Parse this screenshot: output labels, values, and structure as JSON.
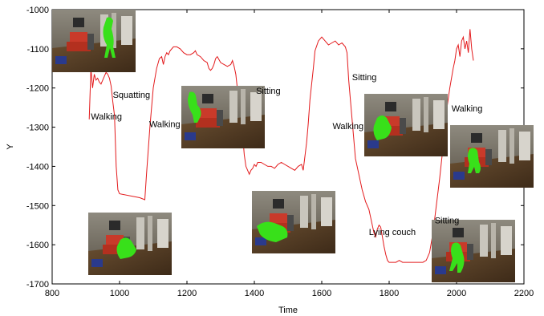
{
  "chart_data": {
    "type": "line",
    "title": "",
    "xlabel": "Time",
    "ylabel": "Y",
    "xlim": [
      800,
      2200
    ],
    "ylim": [
      -1700,
      -1000
    ],
    "xticks": [
      800,
      1000,
      1200,
      1400,
      1600,
      1800,
      2000,
      2200
    ],
    "yticks": [
      -1000,
      -1100,
      -1200,
      -1300,
      -1400,
      -1500,
      -1600,
      -1700
    ],
    "grid": false,
    "legend": "none",
    "line_color": "#e31a1c",
    "series": [
      {
        "x": [
          910,
          915,
          920,
          925,
          930,
          935,
          940,
          945,
          950,
          955,
          960,
          965,
          970,
          975,
          980,
          985,
          990,
          995,
          1000,
          1060,
          1075,
          1080,
          1090,
          1100,
          1110,
          1118,
          1125,
          1130,
          1135,
          1140,
          1145,
          1150,
          1160,
          1170,
          1180,
          1190,
          1200,
          1210,
          1220,
          1225,
          1230,
          1240,
          1250,
          1260,
          1265,
          1270,
          1275,
          1280,
          1285,
          1290,
          1300,
          1310,
          1320,
          1330,
          1335,
          1340,
          1345,
          1350,
          1355,
          1360,
          1365,
          1370,
          1375,
          1380,
          1385,
          1390,
          1395,
          1400,
          1405,
          1410,
          1420,
          1430,
          1440,
          1450,
          1460,
          1470,
          1480,
          1490,
          1500,
          1510,
          1520,
          1530,
          1540,
          1545,
          1550,
          1555,
          1560,
          1565,
          1570,
          1575,
          1580,
          1590,
          1600,
          1610,
          1620,
          1630,
          1640,
          1650,
          1660,
          1670,
          1675,
          1680,
          1690,
          1700,
          1710,
          1720,
          1730,
          1740,
          1750,
          1755,
          1760,
          1765,
          1770,
          1775,
          1780,
          1785,
          1790,
          1795,
          1800,
          1810,
          1820,
          1830,
          1840,
          1860,
          1880,
          1900,
          1910,
          1920,
          1930,
          1940,
          1950,
          1960,
          1970,
          1980,
          1990,
          1995,
          2000,
          2005,
          2010,
          2015,
          2020,
          2025,
          2030,
          2035,
          2040,
          2045,
          2050
        ],
        "y": [
          -1280,
          -1150,
          -1200,
          -1165,
          -1180,
          -1175,
          -1185,
          -1190,
          -1180,
          -1170,
          -1160,
          -1165,
          -1175,
          -1195,
          -1235,
          -1270,
          -1400,
          -1460,
          -1470,
          -1480,
          -1485,
          -1420,
          -1300,
          -1200,
          -1150,
          -1125,
          -1120,
          -1140,
          -1120,
          -1110,
          -1115,
          -1105,
          -1095,
          -1095,
          -1100,
          -1110,
          -1115,
          -1115,
          -1110,
          -1105,
          -1115,
          -1120,
          -1130,
          -1135,
          -1150,
          -1155,
          -1150,
          -1140,
          -1125,
          -1120,
          -1135,
          -1140,
          -1145,
          -1140,
          -1130,
          -1145,
          -1165,
          -1205,
          -1245,
          -1275,
          -1315,
          -1370,
          -1400,
          -1410,
          -1420,
          -1410,
          -1405,
          -1395,
          -1400,
          -1390,
          -1390,
          -1395,
          -1400,
          -1400,
          -1405,
          -1395,
          -1390,
          -1395,
          -1400,
          -1405,
          -1410,
          -1400,
          -1395,
          -1410,
          -1375,
          -1340,
          -1290,
          -1230,
          -1190,
          -1150,
          -1105,
          -1080,
          -1070,
          -1080,
          -1090,
          -1085,
          -1080,
          -1090,
          -1085,
          -1095,
          -1110,
          -1180,
          -1280,
          -1380,
          -1420,
          -1460,
          -1490,
          -1510,
          -1550,
          -1570,
          -1580,
          -1560,
          -1550,
          -1555,
          -1580,
          -1605,
          -1625,
          -1640,
          -1645,
          -1645,
          -1645,
          -1640,
          -1645,
          -1645,
          -1645,
          -1645,
          -1640,
          -1620,
          -1570,
          -1500,
          -1430,
          -1350,
          -1260,
          -1200,
          -1150,
          -1130,
          -1100,
          -1090,
          -1120,
          -1080,
          -1070,
          -1100,
          -1080,
          -1110,
          -1050,
          -1100,
          -1130
        ]
      }
    ],
    "annotations": [
      {
        "text": "Walking",
        "x": 915,
        "y": -1280
      },
      {
        "text": "Squatting",
        "x": 980,
        "y": -1225
      },
      {
        "text": "Walking",
        "x": 1088,
        "y": -1300
      },
      {
        "text": "Sitting",
        "x": 1405,
        "y": -1215
      },
      {
        "text": "Sitting",
        "x": 1690,
        "y": -1180
      },
      {
        "text": "Walking",
        "x": 1632,
        "y": -1305
      },
      {
        "text": "Walking",
        "x": 1985,
        "y": -1260
      },
      {
        "text": "Sitting",
        "x": 1935,
        "y": -1545
      },
      {
        "text": "Lying couch",
        "x": 1740,
        "y": -1575
      }
    ]
  }
}
